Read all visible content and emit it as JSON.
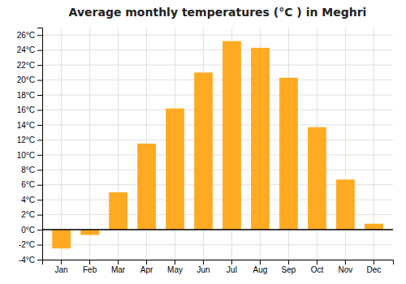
{
  "chart_data": {
    "type": "bar",
    "title": "Average monthly temperatures (°C ) in Meghri",
    "categories": [
      "Jan",
      "Feb",
      "Mar",
      "Apr",
      "May",
      "Jun",
      "Jul",
      "Aug",
      "Sep",
      "Oct",
      "Nov",
      "Dec"
    ],
    "values": [
      -2.5,
      -0.7,
      5.0,
      11.5,
      16.2,
      21.0,
      25.2,
      24.3,
      20.3,
      13.7,
      6.7,
      0.8
    ],
    "color": "#FFAA22",
    "ylim": [
      -4,
      27
    ],
    "yticks": [
      {
        "value": -4,
        "label": "-4°C"
      },
      {
        "value": -2,
        "label": "-2°C"
      },
      {
        "value": 0,
        "label": "0°C"
      },
      {
        "value": 2,
        "label": "2°C"
      },
      {
        "value": 4,
        "label": "4°C"
      },
      {
        "value": 6,
        "label": "6°C"
      },
      {
        "value": 8,
        "label": "8°C"
      },
      {
        "value": 10,
        "label": "10°C"
      },
      {
        "value": 12,
        "label": "12°C"
      },
      {
        "value": 14,
        "label": "14°C"
      },
      {
        "value": 16,
        "label": "16°C"
      },
      {
        "value": 18,
        "label": "18°C"
      },
      {
        "value": 20,
        "label": "20°C"
      },
      {
        "value": 22,
        "label": "22°C"
      },
      {
        "value": 24,
        "label": "24°C"
      },
      {
        "value": 26,
        "label": "26°C"
      }
    ],
    "grid": true
  }
}
